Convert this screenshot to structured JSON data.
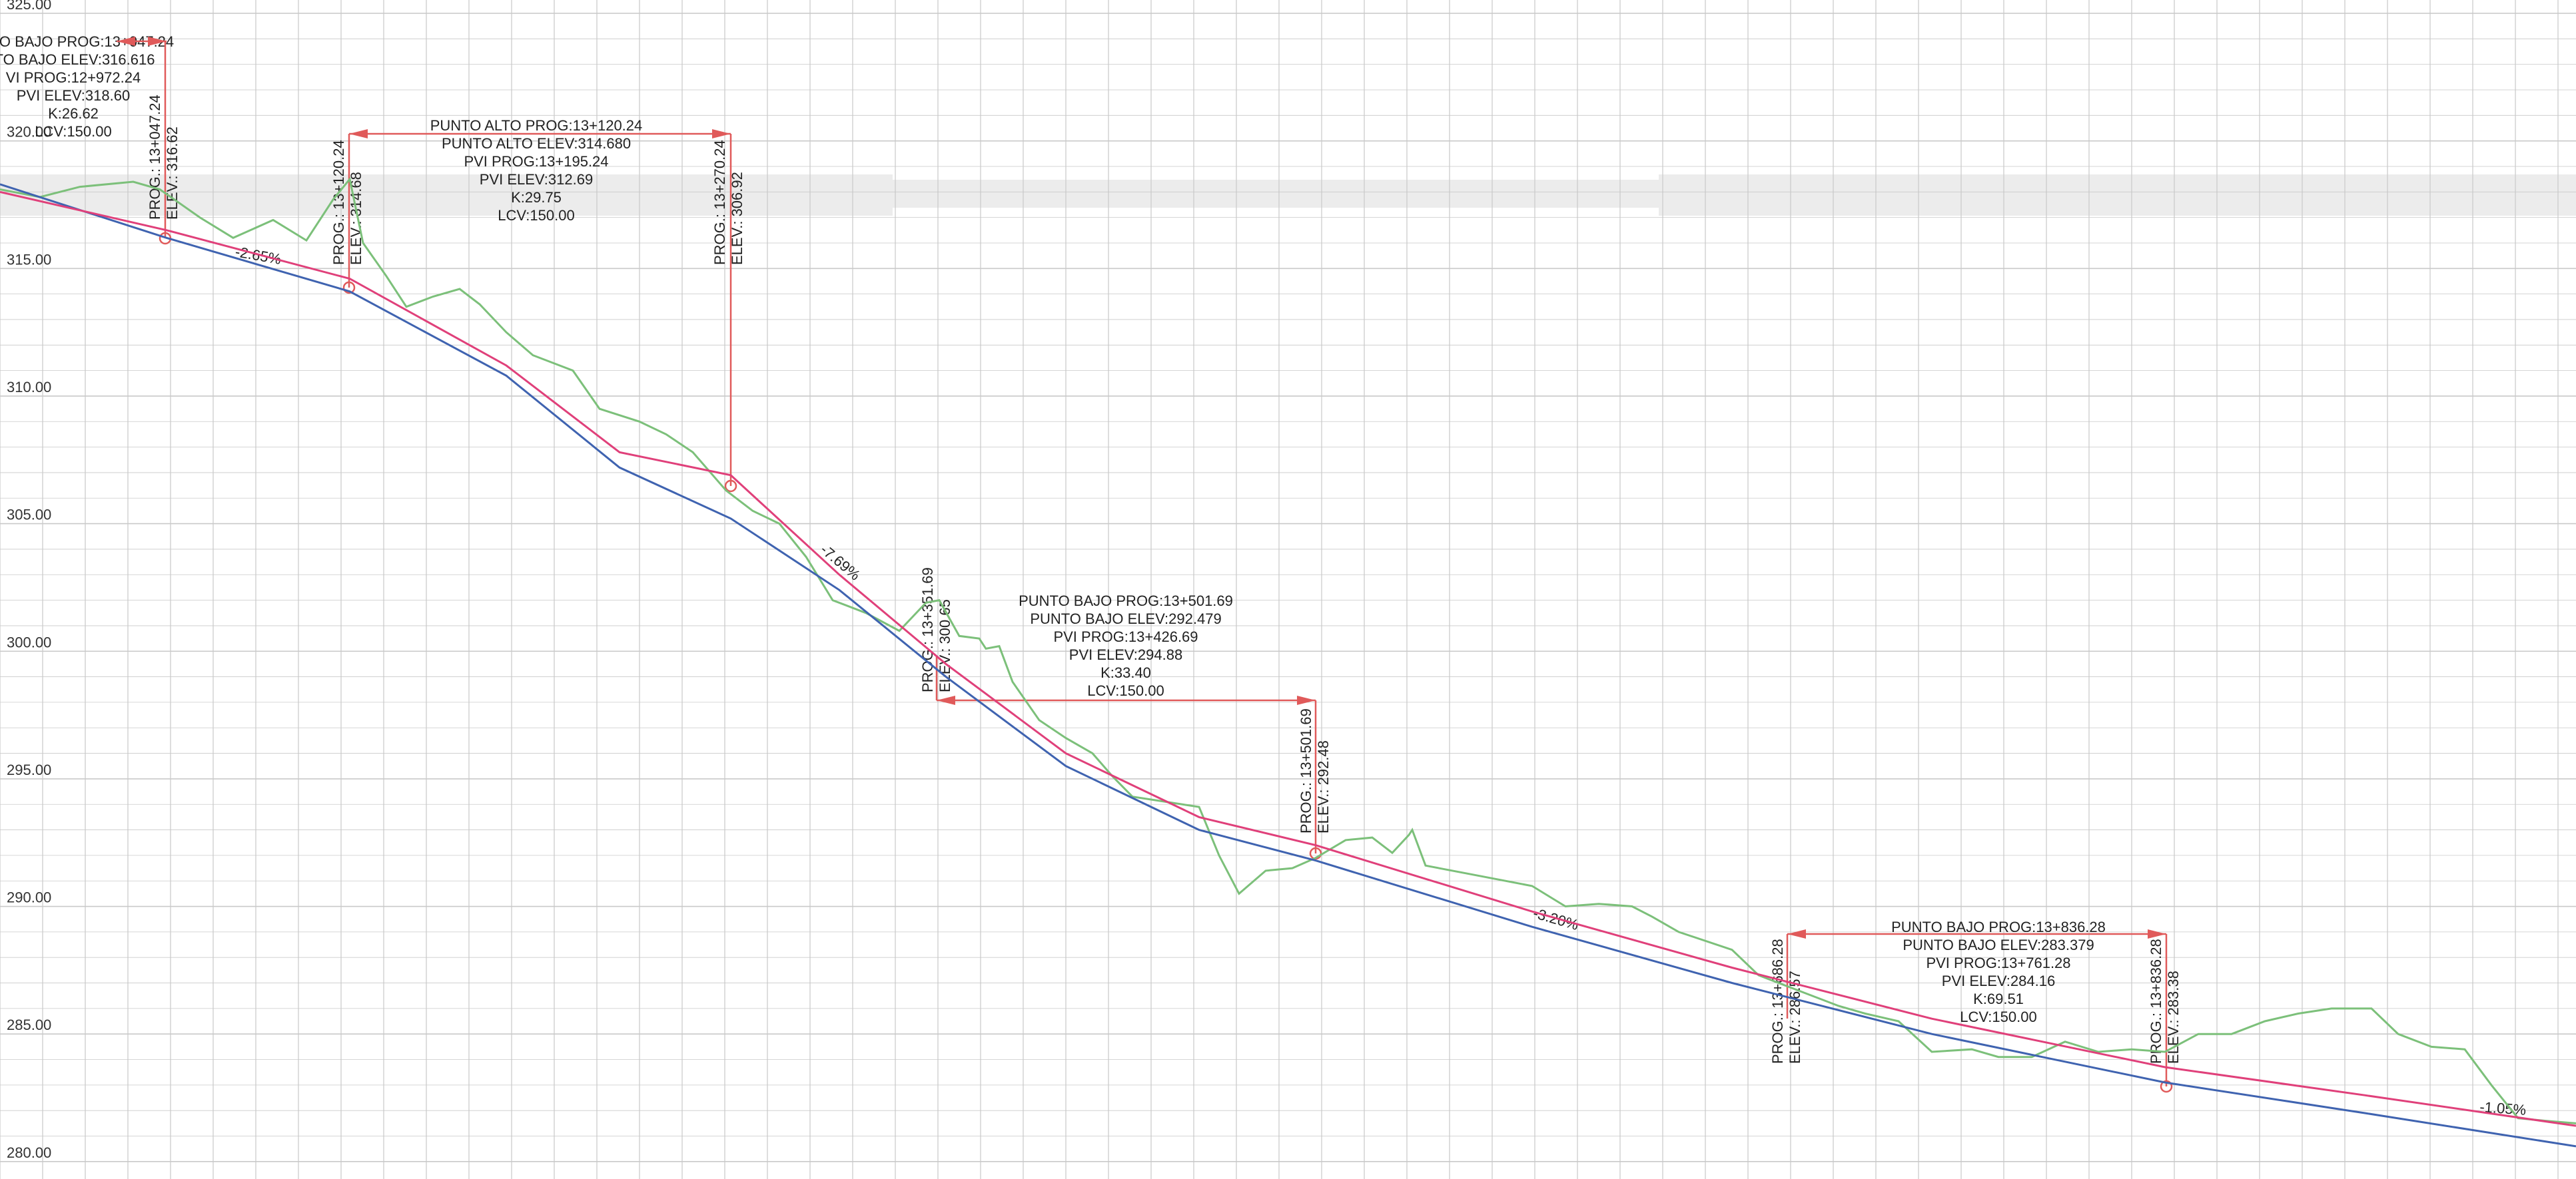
{
  "colors": {
    "grid": "#c9c9c9",
    "ground": "#7cc07a",
    "grade_line": "#e0407a",
    "subgrade_line": "#3f63b0",
    "marker": "#e05a5a",
    "text": "#222222"
  },
  "axis": {
    "elev_ticks": [
      "325.00",
      "320.00",
      "315.00",
      "310.00",
      "305.00",
      "300.00",
      "295.00",
      "290.00",
      "285.00",
      "280.00"
    ]
  },
  "vertical_curves": [
    {
      "id": "curve-1",
      "lines": [
        "O BAJO PROG:13+047.24",
        "TO BAJO ELEV:316.616",
        "VI PROG:12+972.24",
        "PVI ELEV:318.60",
        "K:26.62",
        "LCV:150.00"
      ],
      "start_prog": "",
      "start_elev": "",
      "end_prog": "PROG.: 13+047.24",
      "end_elev": "ELEV.: 316.62"
    },
    {
      "id": "curve-2",
      "lines": [
        "PUNTO ALTO PROG:13+120.24",
        "PUNTO ALTO ELEV:314.680",
        "PVI PROG:13+195.24",
        "PVI ELEV:312.69",
        "K:29.75",
        "LCV:150.00"
      ],
      "start_prog": "PROG.: 13+120.24",
      "start_elev": "ELEV.: 314.68",
      "end_prog": "PROG.: 13+270.24",
      "end_elev": "ELEV.: 306.92"
    },
    {
      "id": "curve-3",
      "lines": [
        "PUNTO BAJO PROG:13+501.69",
        "PUNTO BAJO ELEV:292.479",
        "PVI PROG:13+426.69",
        "PVI ELEV:294.88",
        "K:33.40",
        "LCV:150.00"
      ],
      "start_prog": "PROG.: 13+351.69",
      "start_elev": "ELEV.: 300.65",
      "end_prog": "PROG.: 13+501.69",
      "end_elev": "ELEV.: 292.48"
    },
    {
      "id": "curve-4",
      "lines": [
        "PUNTO BAJO PROG:13+836.28",
        "PUNTO BAJO ELEV:283.379",
        "PVI PROG:13+761.28",
        "PVI ELEV:284.16",
        "K:69.51",
        "LCV:150.00"
      ],
      "start_prog": "PROG.: 13+686.28",
      "start_elev": "ELEV.: 286.57",
      "end_prog": "PROG.: 13+836.28",
      "end_elev": "ELEV.: 283.38"
    }
  ],
  "grades": [
    "-2.65%",
    "-7.69%",
    "-3.20%",
    "-1.05%"
  ],
  "profiles": {
    "grade_line": [
      [
        0,
        318.0
      ],
      [
        250,
        316.5
      ],
      [
        525,
        314.6
      ],
      [
        760,
        311.2
      ],
      [
        930,
        307.8
      ],
      [
        1097,
        306.9
      ],
      [
        1260,
        303.0
      ],
      [
        1420,
        299.5
      ],
      [
        1600,
        296.0
      ],
      [
        1800,
        293.5
      ],
      [
        1975,
        292.4
      ],
      [
        2300,
        289.8
      ],
      [
        2600,
        287.6
      ],
      [
        2900,
        285.6
      ],
      [
        3250,
        283.7
      ],
      [
        3550,
        282.6
      ],
      [
        3867,
        281.4
      ]
    ],
    "subgrade_line": [
      [
        0,
        318.3
      ],
      [
        250,
        316.2
      ],
      [
        525,
        314.1
      ],
      [
        760,
        310.8
      ],
      [
        930,
        307.2
      ],
      [
        1097,
        305.2
      ],
      [
        1260,
        302.4
      ],
      [
        1420,
        299.0
      ],
      [
        1600,
        295.5
      ],
      [
        1800,
        293.0
      ],
      [
        1975,
        291.8
      ],
      [
        2300,
        289.2
      ],
      [
        2600,
        287.0
      ],
      [
        2900,
        285.0
      ],
      [
        3250,
        283.1
      ],
      [
        3550,
        281.9
      ],
      [
        3867,
        280.6
      ]
    ],
    "ground_line": [
      [
        0,
        318.1
      ],
      [
        60,
        317.8
      ],
      [
        120,
        318.2
      ],
      [
        200,
        318.4
      ],
      [
        240,
        318.1
      ],
      [
        300,
        317.0
      ],
      [
        350,
        316.2
      ],
      [
        410,
        316.9
      ],
      [
        460,
        316.1
      ],
      [
        500,
        317.7
      ],
      [
        525,
        318.5
      ],
      [
        545,
        316.0
      ],
      [
        580,
        314.7
      ],
      [
        610,
        313.5
      ],
      [
        650,
        313.9
      ],
      [
        690,
        314.2
      ],
      [
        720,
        313.6
      ],
      [
        760,
        312.5
      ],
      [
        800,
        311.6
      ],
      [
        860,
        311.0
      ],
      [
        900,
        309.5
      ],
      [
        960,
        309.0
      ],
      [
        1000,
        308.5
      ],
      [
        1040,
        307.8
      ],
      [
        1090,
        306.3
      ],
      [
        1130,
        305.5
      ],
      [
        1170,
        305.0
      ],
      [
        1210,
        303.7
      ],
      [
        1250,
        302.0
      ],
      [
        1300,
        301.5
      ],
      [
        1350,
        300.8
      ],
      [
        1390,
        301.9
      ],
      [
        1410,
        302.0
      ],
      [
        1440,
        300.6
      ],
      [
        1470,
        300.5
      ],
      [
        1480,
        300.1
      ],
      [
        1500,
        300.2
      ],
      [
        1520,
        298.8
      ],
      [
        1560,
        297.3
      ],
      [
        1600,
        296.6
      ],
      [
        1640,
        296.0
      ],
      [
        1670,
        295.1
      ],
      [
        1700,
        294.3
      ],
      [
        1750,
        294.1
      ],
      [
        1800,
        293.9
      ],
      [
        1830,
        292.0
      ],
      [
        1860,
        290.5
      ],
      [
        1900,
        291.4
      ],
      [
        1940,
        291.5
      ],
      [
        1975,
        291.9
      ],
      [
        2020,
        292.6
      ],
      [
        2060,
        292.7
      ],
      [
        2090,
        292.1
      ],
      [
        2115,
        292.8
      ],
      [
        2120,
        293.0
      ],
      [
        2140,
        291.6
      ],
      [
        2200,
        291.3
      ],
      [
        2300,
        290.8
      ],
      [
        2350,
        290.0
      ],
      [
        2400,
        290.1
      ],
      [
        2450,
        290.0
      ],
      [
        2480,
        289.6
      ],
      [
        2520,
        289.0
      ],
      [
        2600,
        288.3
      ],
      [
        2640,
        287.3
      ],
      [
        2700,
        286.7
      ],
      [
        2760,
        286.1
      ],
      [
        2800,
        285.8
      ],
      [
        2850,
        285.5
      ],
      [
        2900,
        284.3
      ],
      [
        2960,
        284.4
      ],
      [
        3000,
        284.1
      ],
      [
        3050,
        284.1
      ],
      [
        3100,
        284.7
      ],
      [
        3150,
        284.3
      ],
      [
        3200,
        284.4
      ],
      [
        3250,
        284.3
      ],
      [
        3300,
        285.0
      ],
      [
        3350,
        285.0
      ],
      [
        3400,
        285.5
      ],
      [
        3450,
        285.8
      ],
      [
        3500,
        286.0
      ],
      [
        3560,
        286.0
      ],
      [
        3600,
        285.0
      ],
      [
        3650,
        284.5
      ],
      [
        3700,
        284.4
      ],
      [
        3740,
        283.0
      ],
      [
        3780,
        281.7
      ],
      [
        3820,
        281.6
      ],
      [
        3867,
        281.5
      ]
    ]
  }
}
